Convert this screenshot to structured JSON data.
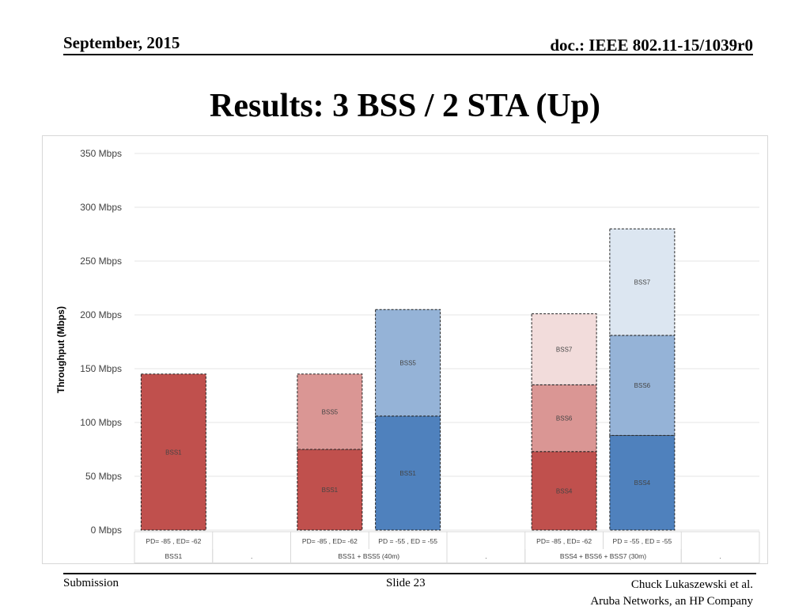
{
  "header": {
    "date": "September, 2015",
    "doc": "doc.: IEEE 802.11-15/1039r0"
  },
  "slide_title": "Results: 3 BSS / 2 STA (Up)",
  "footer": {
    "left": "Submission",
    "center": "Slide 23",
    "right_line1": "Chuck Lukaszewski et al.",
    "right_line2": "Aruba Networks, an HP Company"
  },
  "chart_data": {
    "type": "bar",
    "stacked": true,
    "ylabel": "Throughput (Mbps)",
    "ylim": [
      0,
      350
    ],
    "yticks": [
      0,
      50,
      100,
      150,
      200,
      250,
      300,
      350
    ],
    "ytick_suffix": " Mbps",
    "grid": true,
    "bars": [
      {
        "label": "PD= -85 , ED= -62",
        "segments": [
          {
            "name": "BSS1",
            "value": 145,
            "color": "#c0504d"
          }
        ]
      },
      {
        "label": "",
        "segments": []
      },
      {
        "label": "PD= -85 , ED= -62",
        "segments": [
          {
            "name": "BSS1",
            "value": 75,
            "color": "#c0504d"
          },
          {
            "name": "BSS5",
            "value": 70,
            "color": "#da9694"
          }
        ]
      },
      {
        "label": "PD = -55 , ED = -55",
        "segments": [
          {
            "name": "BSS1",
            "value": 106,
            "color": "#4f81bd"
          },
          {
            "name": "BSS5",
            "value": 99,
            "color": "#95b3d7"
          }
        ]
      },
      {
        "label": "",
        "segments": []
      },
      {
        "label": "PD= -85 , ED= -62",
        "segments": [
          {
            "name": "BSS4",
            "value": 73,
            "color": "#c0504d"
          },
          {
            "name": "BSS6",
            "value": 62,
            "color": "#da9694"
          },
          {
            "name": "BSS7",
            "value": 66,
            "color": "#f2dcdb"
          }
        ]
      },
      {
        "label": "PD = -55 , ED = -55",
        "segments": [
          {
            "name": "BSS4",
            "value": 88,
            "color": "#4f81bd"
          },
          {
            "name": "BSS6",
            "value": 93,
            "color": "#95b3d7"
          },
          {
            "name": "BSS7",
            "value": 99,
            "color": "#dce6f1"
          }
        ]
      },
      {
        "label": "",
        "segments": []
      }
    ],
    "groups": [
      {
        "label": "BSS1",
        "span": [
          0,
          0
        ]
      },
      {
        "label": ".",
        "span": [
          1,
          1
        ]
      },
      {
        "label": "BSS1 + BSS5 (40m)",
        "span": [
          2,
          3
        ]
      },
      {
        "label": ".",
        "span": [
          4,
          4
        ]
      },
      {
        "label": "BSS4 + BSS6 + BSS7 (30m)",
        "span": [
          5,
          6
        ]
      },
      {
        "label": ".",
        "span": [
          7,
          7
        ]
      }
    ]
  }
}
